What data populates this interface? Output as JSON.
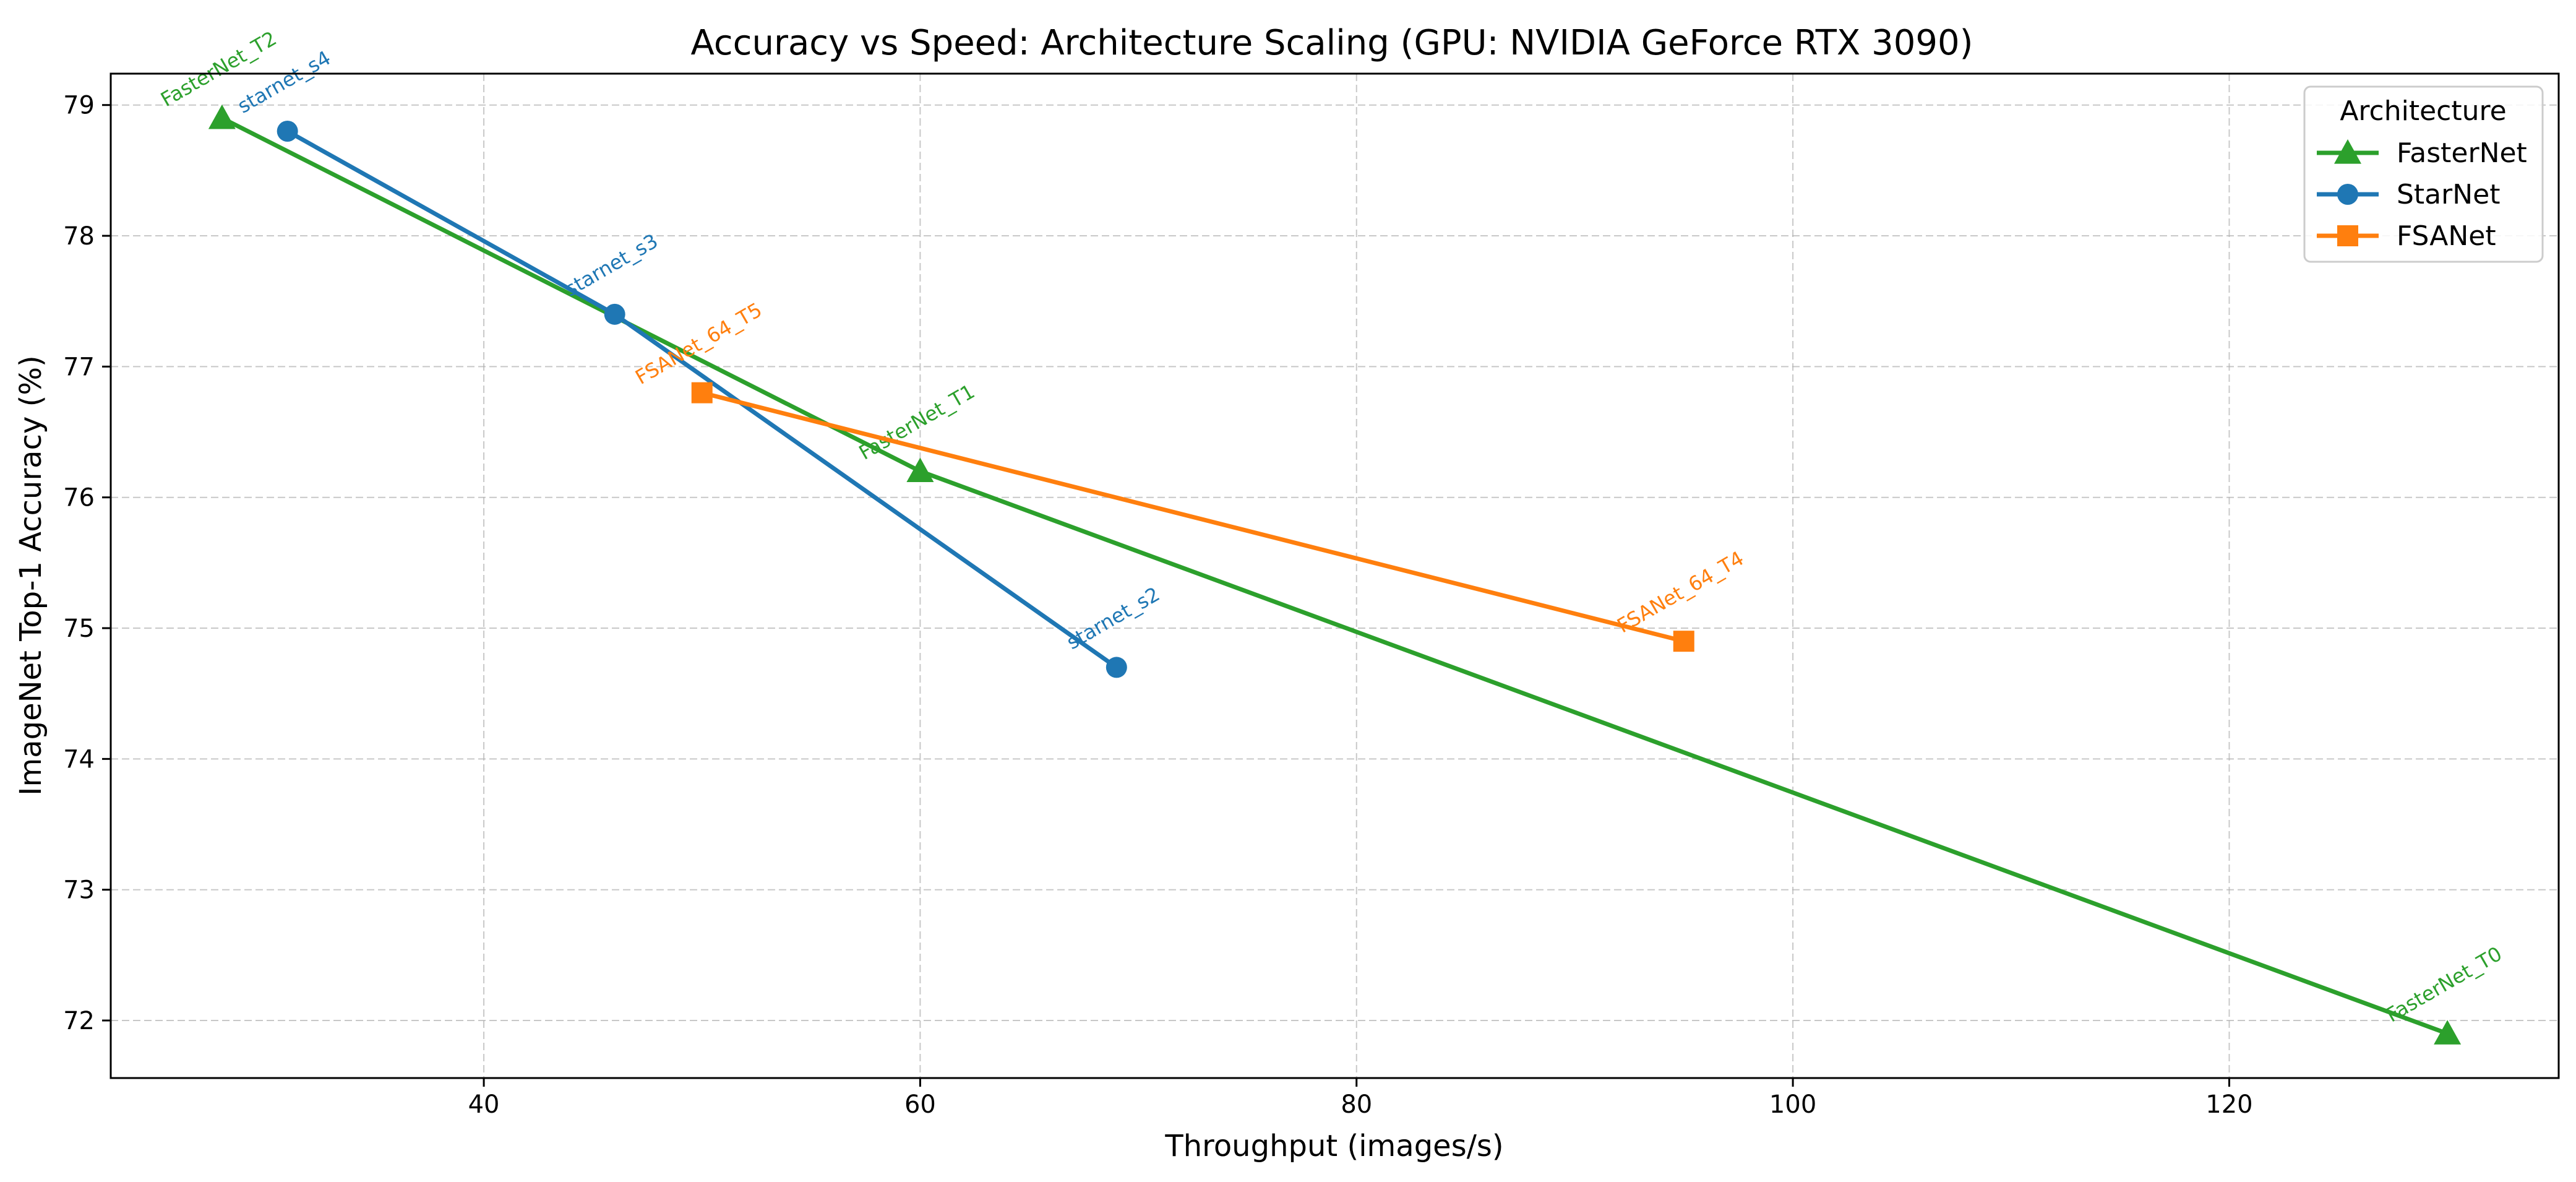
{
  "chart_data": {
    "type": "line",
    "title": "Accuracy vs Speed: Architecture Scaling (GPU: NVIDIA GeForce RTX 3090)",
    "xlabel": "Throughput (images/s)",
    "ylabel": "ImageNet Top-1 Accuracy (%)",
    "xlim": [
      22.9,
      135.1
    ],
    "ylim": [
      71.56,
      79.24
    ],
    "xticks": [
      40,
      60,
      80,
      100,
      120
    ],
    "yticks": [
      72,
      73,
      74,
      75,
      76,
      77,
      78,
      79
    ],
    "grid": true,
    "legend": {
      "title": "Architecture",
      "position": "top-right"
    },
    "series": [
      {
        "name": "FasterNet",
        "color": "#2ca02c",
        "marker": "triangle",
        "points": [
          {
            "x": 28,
            "y": 78.9,
            "label": "FasterNet_T2"
          },
          {
            "x": 60,
            "y": 76.2,
            "label": "FasterNet_T1"
          },
          {
            "x": 130,
            "y": 71.9,
            "label": "FasterNet_T0"
          }
        ]
      },
      {
        "name": "StarNet",
        "color": "#1f77b4",
        "marker": "circle",
        "points": [
          {
            "x": 31,
            "y": 78.8,
            "label": "starnet_s4"
          },
          {
            "x": 46,
            "y": 77.4,
            "label": "starnet_s3"
          },
          {
            "x": 69,
            "y": 74.7,
            "label": "starnet_s2"
          }
        ]
      },
      {
        "name": "FSANet",
        "color": "#ff7f0e",
        "marker": "square",
        "points": [
          {
            "x": 50,
            "y": 76.8,
            "label": "FSANet_64_T5"
          },
          {
            "x": 95,
            "y": 74.9,
            "label": "FSANet_64_T4"
          }
        ]
      }
    ]
  }
}
